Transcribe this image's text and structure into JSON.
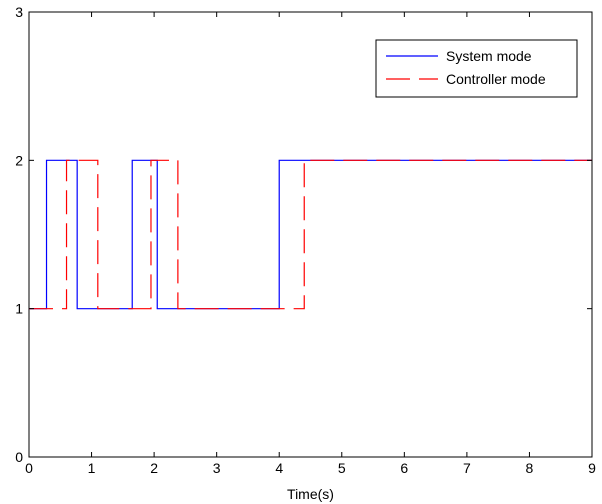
{
  "chart_data": {
    "type": "line",
    "title": "",
    "xlabel": "Time(s)",
    "ylabel": "",
    "xlim": [
      0,
      9
    ],
    "ylim": [
      0,
      3
    ],
    "xticks": [
      0,
      1,
      2,
      3,
      4,
      5,
      6,
      7,
      8,
      9
    ],
    "yticks": [
      0,
      1,
      2,
      3
    ],
    "grid": false,
    "legend_position": "top-right",
    "series": [
      {
        "name": "System mode",
        "color": "#0000ff",
        "style": "solid",
        "x": [
          0,
          0.28,
          0.28,
          0.77,
          0.77,
          1.65,
          1.65,
          2.05,
          2.05,
          4.0,
          4.0,
          9.0
        ],
        "y": [
          1,
          1,
          2,
          2,
          1,
          1,
          2,
          2,
          1,
          1,
          2,
          2
        ]
      },
      {
        "name": "Controller mode",
        "color": "#ff0000",
        "style": "dashed",
        "x": [
          0,
          0.6,
          0.6,
          1.1,
          1.1,
          1.95,
          1.95,
          2.38,
          2.38,
          4.4,
          4.4,
          9.0
        ],
        "y": [
          1,
          1,
          2,
          2,
          1,
          1,
          2,
          2,
          1,
          1,
          2,
          2
        ]
      }
    ]
  }
}
